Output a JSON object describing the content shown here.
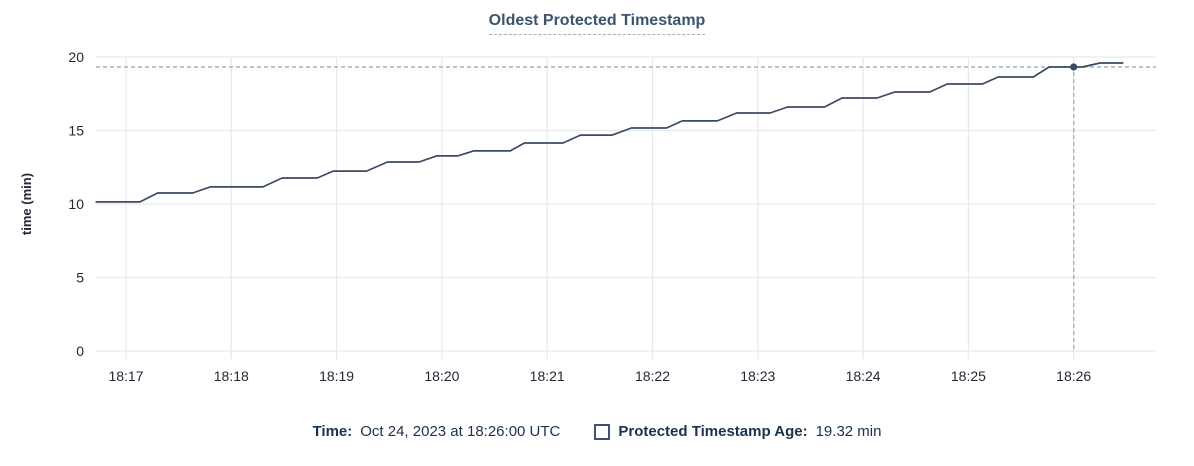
{
  "chart": {
    "title": "Oldest Protected Timestamp"
  },
  "legend": {
    "time_label": "Time:",
    "time_value": "Oct 24, 2023 at 18:26:00 UTC",
    "series_label": "Protected Timestamp Age:",
    "series_value": "19.32 min"
  },
  "chart_data": {
    "type": "line",
    "title": "Oldest Protected Timestamp",
    "xlabel": "",
    "ylabel": "time (min)",
    "x_ticks": [
      "18:17",
      "18:18",
      "18:19",
      "18:20",
      "18:21",
      "18:22",
      "18:23",
      "18:24",
      "18:25",
      "18:26"
    ],
    "x_tick_interval_seconds": 60,
    "y_ticks": [
      0,
      5,
      10,
      15,
      20
    ],
    "ylim": [
      0,
      20
    ],
    "x_range_seconds_from_first_tick": [
      -17,
      587
    ],
    "grid": true,
    "legend_position": "bottom",
    "colors": {
      "line": "#3b4a63",
      "crosshair": "#9fb4c4",
      "grid": "#e8e9eb",
      "tick_text": "#232a35",
      "title": "#3c536e",
      "legend_text": "#1b3150"
    },
    "series": [
      {
        "name": "Protected Timestamp Age",
        "unit": "min",
        "color": "#3b4a63",
        "points": [
          [
            -17,
            10.14
          ],
          [
            8,
            10.14
          ],
          [
            18,
            10.75
          ],
          [
            38,
            10.75
          ],
          [
            48,
            11.16
          ],
          [
            78,
            11.16
          ],
          [
            89,
            11.77
          ],
          [
            109,
            11.77
          ],
          [
            118,
            12.24
          ],
          [
            137,
            12.24
          ],
          [
            149,
            12.86
          ],
          [
            167,
            12.86
          ],
          [
            177,
            13.27
          ],
          [
            189,
            13.27
          ],
          [
            198,
            13.61
          ],
          [
            219,
            13.61
          ],
          [
            227,
            14.15
          ],
          [
            249,
            14.15
          ],
          [
            259,
            14.69
          ],
          [
            277,
            14.69
          ],
          [
            288,
            15.17
          ],
          [
            308,
            15.17
          ],
          [
            317,
            15.65
          ],
          [
            337,
            15.65
          ],
          [
            348,
            16.19
          ],
          [
            367,
            16.19
          ],
          [
            377,
            16.6
          ],
          [
            398,
            16.6
          ],
          [
            408,
            17.21
          ],
          [
            428,
            17.21
          ],
          [
            438,
            17.62
          ],
          [
            458,
            17.62
          ],
          [
            468,
            18.16
          ],
          [
            488,
            18.16
          ],
          [
            497,
            18.64
          ],
          [
            517,
            18.64
          ],
          [
            526,
            19.32
          ],
          [
            545,
            19.32
          ],
          [
            555,
            19.59
          ],
          [
            568,
            19.59
          ]
        ]
      }
    ],
    "hover_point": {
      "t_seconds_from_first_tick": 540,
      "x_label": "18:26",
      "time": "Oct 24, 2023 at 18:26:00 UTC",
      "value_min": 19.32
    }
  }
}
